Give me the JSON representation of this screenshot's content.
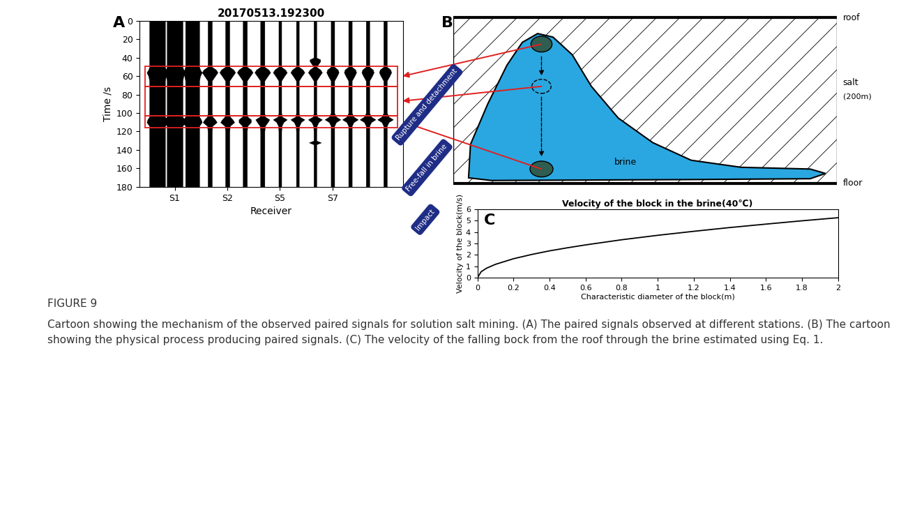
{
  "panel_labels": [
    "A",
    "B",
    "C"
  ],
  "chart_data": [
    {
      "type": "seismogram",
      "title": "20170513.192300",
      "x_label": "Receiver",
      "y_label": "Time /s",
      "color": "#000000",
      "xlim": [
        0,
        15
      ],
      "ylim": [
        180,
        0
      ],
      "xticks": [
        {
          "value": 2,
          "label": "S1"
        },
        {
          "value": 5,
          "label": "S2"
        },
        {
          "value": 8,
          "label": "S5"
        },
        {
          "value": 11,
          "label": "S7"
        }
      ],
      "yticks": [
        0,
        20,
        40,
        60,
        80,
        100,
        120,
        140,
        160,
        180
      ],
      "time": [
        0,
        10,
        20,
        30,
        40,
        42,
        44,
        50,
        53,
        56,
        60,
        65,
        70,
        80,
        90,
        100,
        104,
        107,
        110,
        114,
        120,
        130,
        132,
        134,
        140,
        150,
        160,
        170,
        180
      ],
      "intervals": [
        [
          49,
          71
        ],
        [
          71,
          103
        ],
        [
          103,
          116
        ]
      ],
      "traces": [
        {
          "x": 1,
          "amplitudes": [
            0.45,
            0.45,
            0.45,
            0.45,
            0.45,
            0.45,
            0.45,
            0.45,
            0.5,
            0.6,
            0.5,
            0.45,
            0.45,
            0.45,
            0.45,
            0.45,
            0.45,
            0.55,
            0.6,
            0.45,
            0.45,
            0.45,
            0.45,
            0.45,
            0.45,
            0.45,
            0.45,
            0.45,
            0.45
          ]
        },
        {
          "x": 2,
          "amplitudes": [
            0.45,
            0.45,
            0.45,
            0.45,
            0.45,
            0.45,
            0.45,
            0.45,
            0.5,
            0.6,
            0.5,
            0.45,
            0.45,
            0.45,
            0.45,
            0.45,
            0.45,
            0.55,
            0.6,
            0.45,
            0.45,
            0.45,
            0.45,
            0.45,
            0.45,
            0.45,
            0.45,
            0.45,
            0.45
          ]
        },
        {
          "x": 3,
          "amplitudes": [
            0.4,
            0.4,
            0.4,
            0.4,
            0.4,
            0.4,
            0.4,
            0.4,
            0.45,
            0.55,
            0.45,
            0.4,
            0.4,
            0.4,
            0.4,
            0.4,
            0.4,
            0.5,
            0.55,
            0.4,
            0.4,
            0.4,
            0.4,
            0.4,
            0.4,
            0.4,
            0.4,
            0.4,
            0.4
          ]
        },
        {
          "x": 4,
          "amplitudes": [
            0.12,
            0.12,
            0.12,
            0.12,
            0.12,
            0.12,
            0.12,
            0.12,
            0.35,
            0.45,
            0.3,
            0.12,
            0.12,
            0.12,
            0.12,
            0.12,
            0.15,
            0.3,
            0.4,
            0.15,
            0.12,
            0.12,
            0.12,
            0.12,
            0.12,
            0.12,
            0.12,
            0.12,
            0.12
          ]
        },
        {
          "x": 5,
          "amplitudes": [
            0.12,
            0.12,
            0.12,
            0.12,
            0.12,
            0.12,
            0.12,
            0.12,
            0.35,
            0.45,
            0.3,
            0.12,
            0.12,
            0.12,
            0.12,
            0.12,
            0.15,
            0.3,
            0.4,
            0.15,
            0.12,
            0.12,
            0.12,
            0.12,
            0.12,
            0.12,
            0.12,
            0.12,
            0.12
          ]
        },
        {
          "x": 6,
          "amplitudes": [
            0.12,
            0.12,
            0.12,
            0.12,
            0.12,
            0.12,
            0.12,
            0.12,
            0.35,
            0.45,
            0.3,
            0.12,
            0.12,
            0.12,
            0.12,
            0.12,
            0.15,
            0.35,
            0.35,
            0.15,
            0.12,
            0.12,
            0.12,
            0.12,
            0.12,
            0.12,
            0.12,
            0.12,
            0.12
          ]
        },
        {
          "x": 7,
          "amplitudes": [
            0.12,
            0.12,
            0.12,
            0.12,
            0.12,
            0.12,
            0.12,
            0.12,
            0.35,
            0.45,
            0.3,
            0.12,
            0.12,
            0.12,
            0.12,
            0.12,
            0.15,
            0.4,
            0.3,
            0.15,
            0.12,
            0.12,
            0.12,
            0.12,
            0.12,
            0.12,
            0.12,
            0.12,
            0.12
          ]
        },
        {
          "x": 8,
          "amplitudes": [
            0.08,
            0.08,
            0.08,
            0.08,
            0.08,
            0.08,
            0.08,
            0.08,
            0.3,
            0.4,
            0.25,
            0.08,
            0.08,
            0.08,
            0.08,
            0.08,
            0.12,
            0.4,
            0.2,
            0.1,
            0.08,
            0.08,
            0.08,
            0.08,
            0.08,
            0.08,
            0.08,
            0.08,
            0.08
          ]
        },
        {
          "x": 9,
          "amplitudes": [
            0.08,
            0.08,
            0.08,
            0.08,
            0.08,
            0.08,
            0.08,
            0.08,
            0.3,
            0.4,
            0.25,
            0.08,
            0.08,
            0.08,
            0.08,
            0.08,
            0.12,
            0.4,
            0.2,
            0.1,
            0.08,
            0.08,
            0.08,
            0.08,
            0.08,
            0.08,
            0.08,
            0.08,
            0.08
          ]
        },
        {
          "x": 10,
          "amplitudes": [
            0.08,
            0.08,
            0.08,
            0.08,
            0.08,
            0.3,
            0.3,
            0.08,
            0.3,
            0.4,
            0.25,
            0.08,
            0.08,
            0.08,
            0.08,
            0.08,
            0.12,
            0.4,
            0.2,
            0.1,
            0.08,
            0.08,
            0.35,
            0.08,
            0.08,
            0.08,
            0.08,
            0.08,
            0.08
          ]
        },
        {
          "x": 11,
          "amplitudes": [
            0.1,
            0.1,
            0.1,
            0.1,
            0.1,
            0.1,
            0.1,
            0.1,
            0.3,
            0.35,
            0.25,
            0.1,
            0.1,
            0.1,
            0.1,
            0.1,
            0.2,
            0.45,
            0.2,
            0.1,
            0.1,
            0.1,
            0.1,
            0.1,
            0.1,
            0.1,
            0.1,
            0.1,
            0.1
          ]
        },
        {
          "x": 12,
          "amplitudes": [
            0.1,
            0.1,
            0.1,
            0.1,
            0.1,
            0.1,
            0.1,
            0.1,
            0.3,
            0.35,
            0.25,
            0.1,
            0.1,
            0.1,
            0.1,
            0.1,
            0.2,
            0.45,
            0.2,
            0.1,
            0.1,
            0.1,
            0.1,
            0.1,
            0.1,
            0.1,
            0.1,
            0.1,
            0.1
          ]
        },
        {
          "x": 13,
          "amplitudes": [
            0.1,
            0.1,
            0.1,
            0.1,
            0.1,
            0.1,
            0.1,
            0.1,
            0.3,
            0.35,
            0.25,
            0.1,
            0.1,
            0.1,
            0.1,
            0.1,
            0.2,
            0.45,
            0.2,
            0.1,
            0.1,
            0.1,
            0.1,
            0.1,
            0.1,
            0.1,
            0.1,
            0.1,
            0.1
          ]
        },
        {
          "x": 14,
          "amplitudes": [
            0.1,
            0.1,
            0.1,
            0.1,
            0.1,
            0.1,
            0.1,
            0.1,
            0.3,
            0.35,
            0.25,
            0.1,
            0.1,
            0.1,
            0.1,
            0.1,
            0.2,
            0.45,
            0.2,
            0.1,
            0.1,
            0.1,
            0.1,
            0.1,
            0.1,
            0.1,
            0.1,
            0.1,
            0.1
          ]
        }
      ]
    },
    {
      "type": "line",
      "title": "Velocity of the block in the brine(40℃)",
      "x_label": "Characteristic diameter of the block(m)",
      "y_label": "Velocity of the block(m/s)",
      "color": "#000000",
      "x": [
        0,
        0.02,
        0.05,
        0.1,
        0.2,
        0.3,
        0.4,
        0.5,
        0.6,
        0.8,
        1.0,
        1.2,
        1.4,
        1.6,
        1.8,
        2.0
      ],
      "values": [
        0,
        0.52,
        0.83,
        1.17,
        1.66,
        2.03,
        2.35,
        2.62,
        2.87,
        3.32,
        3.71,
        4.06,
        4.39,
        4.69,
        4.98,
        5.25
      ],
      "xlim": [
        0,
        2
      ],
      "ylim": [
        0,
        6
      ],
      "xticks": [
        0,
        0.2,
        0.4,
        0.6,
        0.8,
        1,
        1.2,
        1.4,
        1.6,
        1.8,
        2
      ],
      "yticks": [
        0,
        1,
        2,
        3,
        4,
        5,
        6
      ]
    }
  ],
  "diagram": {
    "layers": {
      "roof": "roof",
      "salt": "salt",
      "thickness": "(200m)",
      "brine": "brine",
      "floor": "floor"
    },
    "callouts": [
      "Rupture and detachment",
      "Free-fall in brine",
      "Impact"
    ]
  },
  "caption": {
    "label": "FIGURE 9",
    "text": "Cartoon showing the mechanism of the observed paired signals for solution salt mining. (A) The paired signals observed at different stations. (B) The cartoon showing the physical process producing paired signals. (C) The velocity of the falling bock from the roof through the brine estimated using Eq. 1."
  }
}
